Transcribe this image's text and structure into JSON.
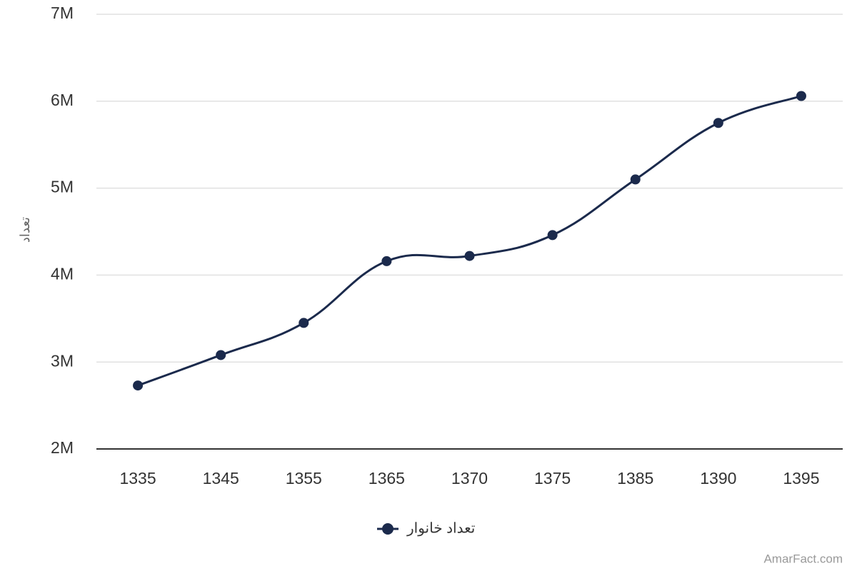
{
  "chart_data": {
    "type": "line",
    "y_label": "تعداد",
    "categories": [
      "1335",
      "1345",
      "1355",
      "1365",
      "1370",
      "1375",
      "1385",
      "1390",
      "1395"
    ],
    "series": [
      {
        "name": "تعداد خانوار",
        "color": "#1b2a4c",
        "values": [
          2730000,
          3080000,
          3450000,
          4160000,
          4220000,
          4460000,
          5100000,
          5750000,
          6060000
        ]
      }
    ],
    "ylim": [
      2000000,
      7000000
    ],
    "yticks": [
      {
        "value": 2000000,
        "label": "2M"
      },
      {
        "value": 3000000,
        "label": "3M"
      },
      {
        "value": 4000000,
        "label": "4M"
      },
      {
        "value": 5000000,
        "label": "5M"
      },
      {
        "value": 6000000,
        "label": "6M"
      },
      {
        "value": 7000000,
        "label": "7M"
      }
    ],
    "grid": true,
    "legend": "bottom",
    "watermark": "AmarFact.com"
  }
}
